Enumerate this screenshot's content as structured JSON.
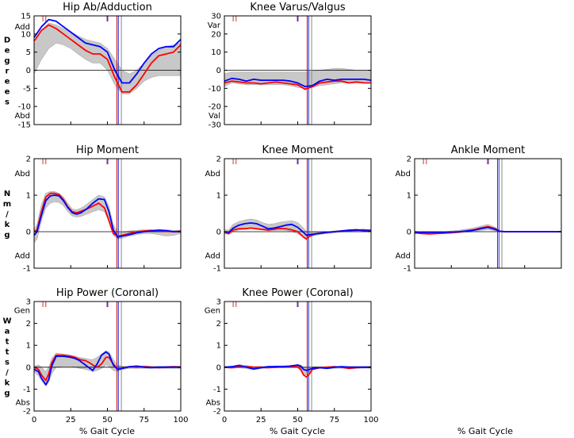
{
  "units": {
    "degrees": [
      "D",
      "e",
      "g",
      "r",
      "e",
      "e",
      "s"
    ],
    "nm_kg": [
      "N",
      "m",
      "/",
      "k",
      "g"
    ],
    "watts_kg": [
      "W",
      "a",
      "t",
      "t",
      "s",
      "/",
      "k",
      "g"
    ]
  },
  "x_axis_label": "% Gait Cycle",
  "x_ticks": [
    "0",
    "25",
    "50",
    "75",
    "100"
  ],
  "series_colors": {
    "left": "#ff0000",
    "right": "#0000ff",
    "band": "#c8c8c8"
  },
  "chart_data": [
    {
      "id": "hip_abad",
      "type": "line",
      "title": "Hip Ab/Adduction",
      "ylim": [
        -15,
        15
      ],
      "y_ticks": [
        "15",
        "10",
        "5",
        "0",
        "-5",
        "-10",
        "-15"
      ],
      "y_words": [
        {
          "text": "Add",
          "at": 12
        },
        {
          "text": "Abd",
          "at": -12.5
        }
      ],
      "events": {
        "purple": 50,
        "left_off": 56.5,
        "right_off": 57.5,
        "grey_off": 59.5,
        "left_red_ticks": [
          6,
          8
        ]
      },
      "x": [
        0,
        5,
        10,
        15,
        20,
        25,
        30,
        35,
        40,
        45,
        50,
        55,
        60,
        65,
        70,
        75,
        80,
        85,
        90,
        95,
        100
      ],
      "series": [
        {
          "id": "left",
          "values": [
            8,
            11,
            12.5,
            11.5,
            10,
            8.5,
            7,
            5.5,
            4.5,
            4.5,
            3,
            -2,
            -6,
            -6,
            -4,
            -1,
            2,
            4,
            4.5,
            5,
            7
          ]
        },
        {
          "id": "right",
          "values": [
            9,
            12,
            14,
            13.5,
            12,
            10.5,
            9,
            7.5,
            7,
            6.5,
            5,
            0,
            -3.5,
            -3.5,
            -1,
            2,
            4.5,
            6,
            6.5,
            6.5,
            8.5
          ]
        }
      ],
      "band_upper": [
        7,
        11,
        13,
        12.5,
        11.5,
        10.5,
        9.5,
        8.5,
        8,
        7.5,
        6,
        3,
        0,
        -1,
        0,
        2,
        4,
        5.5,
        6.5,
        7,
        7.5
      ],
      "band_lower": [
        -1,
        3,
        6,
        7.5,
        7,
        6,
        4.5,
        3,
        2,
        2,
        0,
        -4,
        -6.5,
        -6.5,
        -5,
        -3,
        -2,
        -1.5,
        -1.5,
        -1.5,
        -1.5
      ]
    },
    {
      "id": "knee_varval",
      "type": "line",
      "title": "Knee Varus/Valgus",
      "ylim": [
        -30,
        30
      ],
      "y_ticks": [
        "30",
        "20",
        "10",
        "0",
        "-10",
        "-20",
        "-30"
      ],
      "y_words": [
        {
          "text": "Var",
          "at": 25
        },
        {
          "text": "Val",
          "at": -25
        }
      ],
      "events": {
        "purple": 50,
        "left_off": 56.5,
        "right_off": 57.5,
        "grey_off": 59.5,
        "left_red_ticks": [
          6,
          8
        ]
      },
      "x": [
        0,
        5,
        10,
        15,
        20,
        25,
        30,
        35,
        40,
        45,
        50,
        55,
        60,
        65,
        70,
        75,
        80,
        85,
        90,
        95,
        100
      ],
      "series": [
        {
          "id": "left",
          "values": [
            -7,
            -6,
            -6.5,
            -7,
            -7,
            -7.5,
            -7,
            -6.5,
            -7,
            -7.5,
            -8,
            -10.5,
            -9,
            -7,
            -6.5,
            -6,
            -6,
            -7,
            -6.5,
            -7,
            -7
          ]
        },
        {
          "id": "right",
          "values": [
            -6,
            -4.5,
            -5,
            -6,
            -5,
            -5.5,
            -5.5,
            -5.5,
            -5.5,
            -6,
            -7,
            -9,
            -8.5,
            -6,
            -5,
            -5.5,
            -5,
            -5,
            -5,
            -5,
            -5.5
          ]
        }
      ],
      "band_upper": [
        -2,
        -1,
        -1,
        -1,
        -1,
        -1,
        -1,
        -1,
        -1,
        -1,
        -1,
        -1,
        -0.5,
        0,
        0.5,
        1,
        1,
        0.5,
        0,
        0,
        -0.5
      ],
      "band_lower": [
        -9,
        -7,
        -7.5,
        -8,
        -8,
        -8,
        -8,
        -8,
        -8,
        -8.5,
        -9.5,
        -10,
        -9.5,
        -8.5,
        -8,
        -7.5,
        -7,
        -7,
        -7,
        -7,
        -7
      ]
    },
    {
      "id": "hip_moment",
      "type": "line",
      "title": "Hip Moment",
      "ylim": [
        -1,
        2
      ],
      "y_ticks": [
        "2",
        "1",
        "0",
        "-1"
      ],
      "y_words": [
        {
          "text": "Abd",
          "at": 1.6
        },
        {
          "text": "Add",
          "at": -0.65
        }
      ],
      "events": {
        "purple": 50,
        "left_off": 56.5,
        "right_off": 57.5,
        "grey_off": 59.5,
        "left_red_ticks": [
          6,
          8
        ]
      },
      "x": [
        0,
        2,
        5,
        8,
        11,
        14,
        17,
        20,
        23,
        26,
        29,
        32,
        36,
        40,
        44,
        48,
        51,
        54,
        57,
        60,
        65,
        70,
        75,
        80,
        85,
        90,
        95,
        100
      ],
      "series": [
        {
          "id": "left",
          "values": [
            0,
            0.05,
            0.55,
            0.95,
            1.05,
            1.05,
            1.02,
            0.88,
            0.68,
            0.55,
            0.52,
            0.56,
            0.62,
            0.7,
            0.78,
            0.65,
            0.3,
            -0.05,
            -0.12,
            -0.1,
            -0.05,
            0,
            0.02,
            0.03,
            0.02,
            0.01,
            0,
            0.02
          ]
        },
        {
          "id": "right",
          "values": [
            -0.1,
            0,
            0.45,
            0.85,
            0.98,
            1.0,
            0.98,
            0.85,
            0.66,
            0.52,
            0.48,
            0.52,
            0.63,
            0.78,
            0.9,
            0.88,
            0.55,
            0.05,
            -0.15,
            -0.12,
            -0.08,
            -0.03,
            0,
            0.02,
            0.04,
            0.03,
            0,
            0
          ]
        }
      ],
      "band_upper": [
        0.05,
        0.2,
        0.75,
        1.05,
        1.1,
        1.1,
        1.05,
        0.95,
        0.78,
        0.62,
        0.6,
        0.65,
        0.75,
        0.88,
        1.0,
        0.95,
        0.7,
        0.2,
        0.0,
        -0.02,
        0.02,
        0.04,
        0.05,
        0.06,
        0.06,
        0.05,
        0.04,
        0.03
      ],
      "band_lower": [
        -0.3,
        -0.2,
        0.3,
        0.65,
        0.78,
        0.82,
        0.8,
        0.72,
        0.55,
        0.43,
        0.4,
        0.42,
        0.48,
        0.55,
        0.6,
        0.55,
        0.3,
        -0.1,
        -0.2,
        -0.18,
        -0.12,
        -0.08,
        -0.05,
        -0.05,
        -0.08,
        -0.12,
        -0.1,
        -0.05
      ]
    },
    {
      "id": "knee_moment",
      "type": "line",
      "title": "Knee Moment",
      "ylim": [
        -1,
        2
      ],
      "y_ticks": [
        "2",
        "1",
        "0",
        "-1"
      ],
      "y_words": [
        {
          "text": "Abd",
          "at": 1.6
        },
        {
          "text": "Add",
          "at": -0.65
        }
      ],
      "events": {
        "purple": 50,
        "left_off": 56.5,
        "right_off": 57.5,
        "grey_off": 59.5,
        "left_red_ticks": [
          6,
          8
        ]
      },
      "x": [
        0,
        3,
        6,
        10,
        14,
        18,
        22,
        26,
        30,
        34,
        38,
        42,
        46,
        50,
        54,
        56,
        58,
        62,
        66,
        70,
        75,
        80,
        85,
        90,
        95,
        100
      ],
      "series": [
        {
          "id": "left",
          "values": [
            -0.02,
            -0.05,
            0.05,
            0.08,
            0.08,
            0.1,
            0.08,
            0.06,
            0.05,
            0.07,
            0.09,
            0.08,
            0.05,
            0,
            -0.15,
            -0.2,
            -0.12,
            -0.06,
            -0.04,
            -0.02,
            0,
            0.02,
            0.03,
            0.04,
            0.05,
            0.04
          ]
        },
        {
          "id": "right",
          "values": [
            0,
            -0.02,
            0.1,
            0.18,
            0.22,
            0.24,
            0.22,
            0.15,
            0.08,
            0.1,
            0.14,
            0.18,
            0.2,
            0.12,
            -0.02,
            -0.1,
            -0.08,
            -0.06,
            -0.04,
            -0.02,
            0,
            0.02,
            0.04,
            0.05,
            0.03,
            0.02
          ]
        }
      ],
      "band_upper": [
        0.05,
        0.05,
        0.2,
        0.28,
        0.32,
        0.35,
        0.32,
        0.25,
        0.2,
        0.22,
        0.26,
        0.28,
        0.3,
        0.25,
        0.1,
        0.0,
        -0.02,
        -0.02,
        -0.01,
        0.0,
        0.02,
        0.04,
        0.06,
        0.07,
        0.06,
        0.05
      ],
      "band_lower": [
        -0.05,
        -0.08,
        0.0,
        0.05,
        0.08,
        0.1,
        0.08,
        0.05,
        0.02,
        0.03,
        0.04,
        0.03,
        0.0,
        -0.05,
        -0.15,
        -0.2,
        -0.15,
        -0.1,
        -0.07,
        -0.05,
        -0.03,
        -0.01,
        0.0,
        0.0,
        0.0,
        0.0
      ]
    },
    {
      "id": "ankle_moment",
      "type": "line",
      "title": "Ankle Moment",
      "ylim": [
        -1,
        2
      ],
      "y_ticks": [
        "2",
        "1",
        "0",
        "-1"
      ],
      "y_words": [
        {
          "text": "Abd",
          "at": 1.6
        },
        {
          "text": "Add",
          "at": -0.65
        }
      ],
      "events": {
        "purple": 50,
        "left_off": 56.5,
        "right_off": 57.5,
        "grey_off": 59.5,
        "left_red_ticks": [
          6,
          8
        ]
      },
      "x": [
        0,
        5,
        10,
        15,
        20,
        25,
        30,
        35,
        40,
        45,
        50,
        55,
        58,
        62,
        70,
        80,
        90,
        100
      ],
      "series": [
        {
          "id": "left",
          "values": [
            -0.03,
            -0.05,
            -0.06,
            -0.05,
            -0.04,
            -0.03,
            -0.01,
            0.02,
            0.05,
            0.1,
            0.14,
            0.08,
            0.01,
            0,
            0,
            0,
            0,
            0
          ]
        },
        {
          "id": "right",
          "values": [
            -0.02,
            -0.02,
            -0.02,
            -0.02,
            -0.02,
            -0.01,
            0.0,
            0.02,
            0.04,
            0.08,
            0.12,
            0.06,
            0.01,
            0,
            0,
            0,
            0,
            0
          ]
        }
      ],
      "band_upper": [
        0.0,
        0.0,
        0.0,
        0.0,
        0.0,
        0.02,
        0.04,
        0.07,
        0.1,
        0.15,
        0.2,
        0.12,
        0.03,
        0.01,
        0.0,
        0.0,
        0.0,
        0.0
      ],
      "band_lower": [
        -0.05,
        -0.05,
        -0.05,
        -0.05,
        -0.05,
        -0.04,
        -0.03,
        -0.02,
        0.0,
        0.03,
        0.06,
        0.02,
        -0.01,
        -0.01,
        0.0,
        0.0,
        0.0,
        0.0
      ]
    },
    {
      "id": "hip_power",
      "type": "line",
      "title": "Hip Power (Coronal)",
      "ylim": [
        -2,
        3
      ],
      "y_ticks": [
        "3",
        "2",
        "1",
        "0",
        "-1",
        "-2"
      ],
      "y_words": [
        {
          "text": "Gen",
          "at": 2.6
        },
        {
          "text": "Abs",
          "at": -1.6
        }
      ],
      "events": {
        "purple": 50,
        "left_off": 56.5,
        "right_off": 57.5,
        "grey_off": 59.5,
        "left_red_ticks": [
          6,
          8
        ]
      },
      "x": [
        0,
        3,
        5,
        8,
        10,
        12,
        15,
        20,
        25,
        28,
        31,
        35,
        38,
        40,
        43,
        46,
        49,
        51,
        54,
        57,
        60,
        65,
        70,
        75,
        80,
        85,
        90,
        95,
        100
      ],
      "series": [
        {
          "id": "left",
          "values": [
            0,
            -0.1,
            -0.35,
            -0.6,
            -0.3,
            0.2,
            0.55,
            0.55,
            0.5,
            0.45,
            0.35,
            0.3,
            0.2,
            0.1,
            0.0,
            0.15,
            0.45,
            0.45,
            0.15,
            -0.1,
            -0.05,
            0.02,
            0.0,
            0.02,
            0.0,
            -0.02,
            0.0,
            0.02,
            0.0
          ]
        },
        {
          "id": "right",
          "values": [
            -0.1,
            -0.2,
            -0.5,
            -0.8,
            -0.55,
            0.05,
            0.5,
            0.5,
            0.45,
            0.4,
            0.3,
            0.1,
            -0.05,
            -0.15,
            0.15,
            0.55,
            0.7,
            0.6,
            0.1,
            -0.1,
            -0.05,
            0.02,
            0.05,
            0.0,
            -0.02,
            0.0,
            0.0,
            0.0,
            0.0
          ]
        }
      ],
      "band_upper": [
        0.05,
        0.1,
        0.0,
        -0.2,
        0.0,
        0.4,
        0.65,
        0.6,
        0.55,
        0.5,
        0.45,
        0.4,
        0.35,
        0.35,
        0.45,
        0.6,
        0.75,
        0.7,
        0.35,
        0.1,
        0.05,
        0.05,
        0.06,
        0.06,
        0.05,
        0.05,
        0.05,
        0.05,
        0.05
      ],
      "band_lower": [
        -0.2,
        -0.4,
        -0.6,
        -0.85,
        -0.7,
        -0.3,
        0.0,
        0.05,
        0.05,
        0.0,
        -0.05,
        -0.1,
        -0.15,
        -0.2,
        -0.15,
        -0.05,
        0.1,
        0.05,
        -0.15,
        -0.2,
        -0.1,
        -0.05,
        -0.05,
        -0.05,
        -0.05,
        -0.05,
        -0.05,
        -0.05,
        -0.05
      ]
    },
    {
      "id": "knee_power",
      "type": "line",
      "title": "Knee Power (Coronal)",
      "ylim": [
        -2,
        3
      ],
      "y_ticks": [
        "3",
        "2",
        "1",
        "0",
        "-1",
        "-2"
      ],
      "y_words": [
        {
          "text": "Gen",
          "at": 2.6
        },
        {
          "text": "Abs",
          "at": -1.6
        }
      ],
      "events": {
        "purple": 50,
        "left_off": 56.5,
        "right_off": 57.5,
        "grey_off": 59.5,
        "left_red_ticks": [
          6,
          8
        ]
      },
      "x": [
        0,
        5,
        10,
        15,
        20,
        25,
        30,
        35,
        40,
        45,
        50,
        52,
        54,
        56,
        58,
        60,
        65,
        70,
        75,
        80,
        85,
        90,
        95,
        100
      ],
      "series": [
        {
          "id": "left",
          "values": [
            0,
            -0.02,
            0.02,
            0.02,
            0.0,
            0.0,
            -0.02,
            0.0,
            0.02,
            0.03,
            0.02,
            -0.1,
            -0.35,
            -0.45,
            -0.3,
            -0.1,
            -0.02,
            0.0,
            0.02,
            0.0,
            -0.05,
            -0.02,
            0.0,
            0.0
          ]
        },
        {
          "id": "right",
          "values": [
            0,
            0.02,
            0.08,
            0.0,
            -0.08,
            -0.02,
            0.02,
            0.03,
            0.02,
            0.05,
            0.1,
            0.05,
            -0.1,
            -0.15,
            -0.1,
            -0.05,
            -0.02,
            -0.05,
            0.0,
            0.02,
            0.0,
            0.0,
            0.0,
            0.0
          ]
        }
      ],
      "band_upper": [
        0.03,
        0.05,
        0.12,
        0.08,
        0.03,
        0.04,
        0.05,
        0.06,
        0.07,
        0.08,
        0.12,
        0.1,
        0.02,
        -0.05,
        -0.02,
        0.02,
        0.03,
        0.03,
        0.04,
        0.04,
        0.04,
        0.04,
        0.04,
        0.04
      ],
      "band_lower": [
        -0.03,
        -0.05,
        -0.03,
        -0.06,
        -0.12,
        -0.06,
        -0.04,
        -0.03,
        -0.03,
        -0.02,
        -0.02,
        -0.15,
        -0.3,
        -0.35,
        -0.2,
        -0.1,
        -0.05,
        -0.07,
        -0.05,
        -0.04,
        -0.08,
        -0.05,
        -0.04,
        -0.04
      ]
    }
  ]
}
